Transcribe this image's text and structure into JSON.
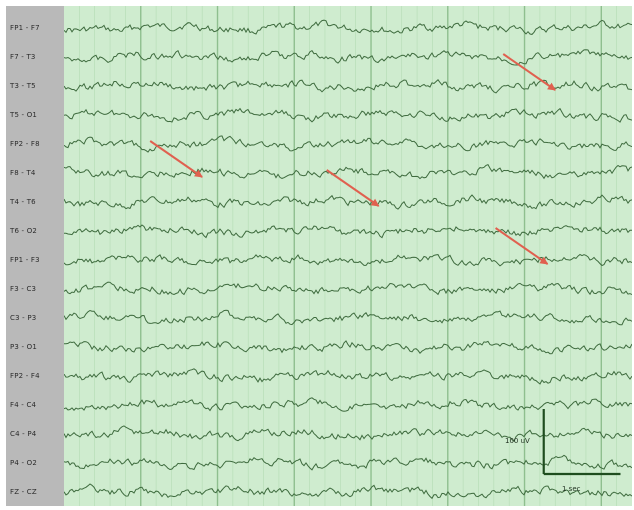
{
  "colors": {
    "background": "#cfeccf",
    "grid": "#b4dcb4",
    "epoch_line": "#8fbf8f",
    "trace": "#3e6b3e",
    "label_panel": "#b9b9b9",
    "arrow": "#e0604f",
    "scale_bar": "#1e4d1e"
  },
  "chart_data": {
    "type": "line",
    "title": "",
    "xlabel": "",
    "ylabel": "",
    "montage": "longitudinal bipolar",
    "channels": [
      "FP1 - F7",
      "F7 - T3",
      "T3 - T5",
      "T5 - O1",
      "FP2 - F8",
      "F8 - T4",
      "T4 - T6",
      "T6 - O2",
      "FP1 - F3",
      "F3 - C3",
      "C3 - P3",
      "P3 - O1",
      "FP2 - F4",
      "F4 - C4",
      "C4 - P4",
      "P4 - O2",
      "FZ - CZ"
    ],
    "epoch_markers_s": [
      1,
      2,
      3,
      4,
      5,
      6,
      7
    ],
    "x_range_s": [
      0,
      7.4
    ],
    "grid": true,
    "annotations": [
      {
        "type": "arrow",
        "channel": "T3 - T5",
        "time_s": 6.4
      },
      {
        "type": "arrow",
        "channel": "F8 - T4",
        "time_s": 1.8
      },
      {
        "type": "arrow",
        "channel": "T4 - T6",
        "time_s": 4.1
      },
      {
        "type": "arrow",
        "channel": "FP1 - F3",
        "time_s": 6.3
      }
    ],
    "scale_bar": {
      "amplitude_label": "100 uV",
      "time_label": "1 sec"
    }
  }
}
